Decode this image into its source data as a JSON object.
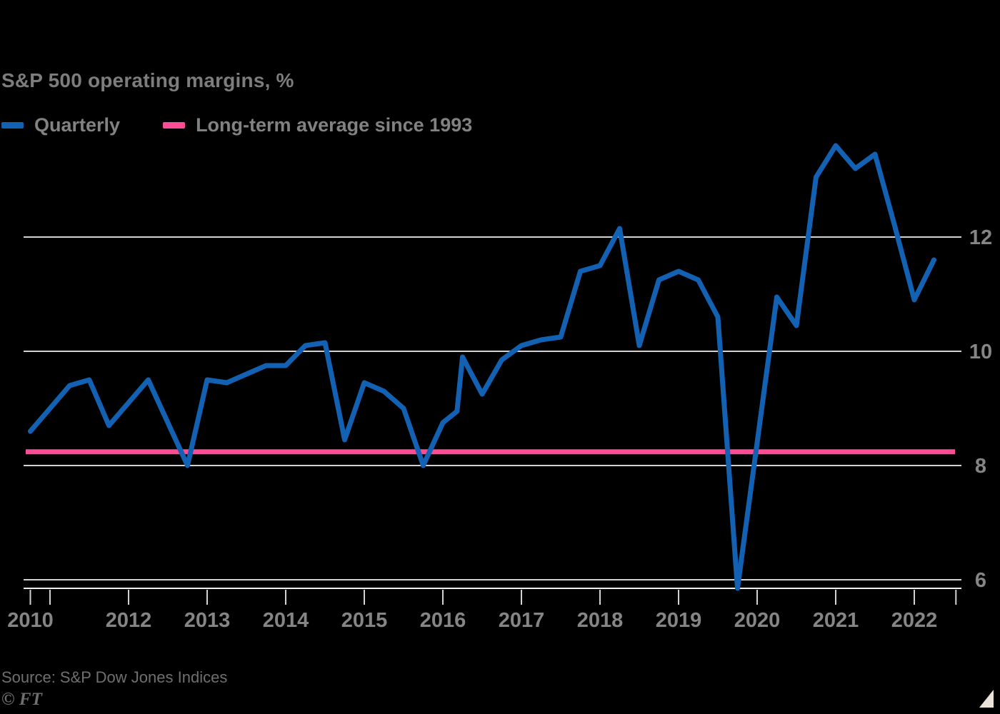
{
  "title": "S&P 500 operating margins, %",
  "legend": {
    "items": [
      {
        "label": "Quarterly",
        "color": "#1261b2"
      },
      {
        "label": "Long-term average since 1993",
        "color": "#fa4d96"
      }
    ]
  },
  "source": {
    "label": "Source: S&P Dow Jones Indices",
    "copyright": "© FT"
  },
  "colors": {
    "background": "#000000",
    "quarterly_line": "#1261b2",
    "average_line": "#fa4d96",
    "gridline": "#d2d2d2",
    "axis_line": "#eeeeee",
    "tick": "#d2d2d2",
    "title_text": "#7d7d7d",
    "legend_text": "#828282",
    "axis_label_text": "#858585",
    "source_text": "#6f6f6f",
    "corner_triangle": "#eae3d9"
  },
  "chart_data": {
    "type": "line",
    "title": "S&P 500 operating margins, %",
    "unit": "%",
    "grid": "horizontal",
    "legend_position": "top-left",
    "y_axis_side": "right",
    "y_ticks": [
      12,
      10,
      8,
      6
    ],
    "ylim": [
      5.7,
      13.8
    ],
    "xlim": [
      2010.68,
      2022.6
    ],
    "x_ticks": [
      {
        "year": 2010.75,
        "label": "2010"
      },
      {
        "year": 2011,
        "label": ""
      },
      {
        "year": 2012,
        "label": "2012"
      },
      {
        "year": 2013,
        "label": "2013"
      },
      {
        "year": 2014,
        "label": "2014"
      },
      {
        "year": 2015,
        "label": "2015"
      },
      {
        "year": 2016,
        "label": "2016"
      },
      {
        "year": 2017,
        "label": "2017"
      },
      {
        "year": 2018,
        "label": "2018"
      },
      {
        "year": 2019,
        "label": "2019"
      },
      {
        "year": 2020,
        "label": "2020"
      },
      {
        "year": 2021,
        "label": "2021"
      },
      {
        "year": 2022,
        "label": "2022"
      },
      {
        "year": 2022.53,
        "label": ""
      }
    ],
    "series": [
      {
        "name": "Quarterly",
        "color": "#1261b2",
        "x": [
          2010.75,
          2011.0,
          2011.25,
          2011.5,
          2011.75,
          2012.0,
          2012.25,
          2012.5,
          2012.75,
          2013.0,
          2013.25,
          2013.5,
          2013.75,
          2014.0,
          2014.25,
          2014.5,
          2014.75,
          2015.0,
          2015.25,
          2015.5,
          2015.75,
          2016.0,
          2016.18,
          2016.25,
          2016.5,
          2016.75,
          2017.0,
          2017.25,
          2017.5,
          2017.75,
          2018.0,
          2018.25,
          2018.5,
          2018.75,
          2019.0,
          2019.25,
          2019.5,
          2019.75,
          2020.0,
          2020.25,
          2020.5,
          2020.75,
          2021.0,
          2021.25,
          2021.5,
          2021.75,
          2022.0,
          2022.25
        ],
        "values": [
          8.6,
          9.0,
          9.4,
          9.5,
          8.7,
          9.1,
          9.5,
          8.75,
          8.0,
          9.5,
          9.45,
          9.6,
          9.75,
          9.75,
          10.1,
          10.15,
          8.45,
          9.45,
          9.3,
          9.0,
          8.0,
          8.75,
          8.95,
          9.9,
          9.25,
          9.85,
          10.1,
          10.2,
          10.25,
          11.4,
          11.5,
          12.15,
          10.1,
          11.25,
          11.4,
          11.25,
          10.6,
          5.85,
          8.4,
          10.95,
          10.45,
          13.05,
          13.6,
          13.2,
          13.45,
          12.2,
          10.9,
          11.6
        ]
      },
      {
        "name": "Long-term average since 1993",
        "color": "#fa4d96",
        "style": "constant",
        "value": 8.24
      }
    ]
  }
}
